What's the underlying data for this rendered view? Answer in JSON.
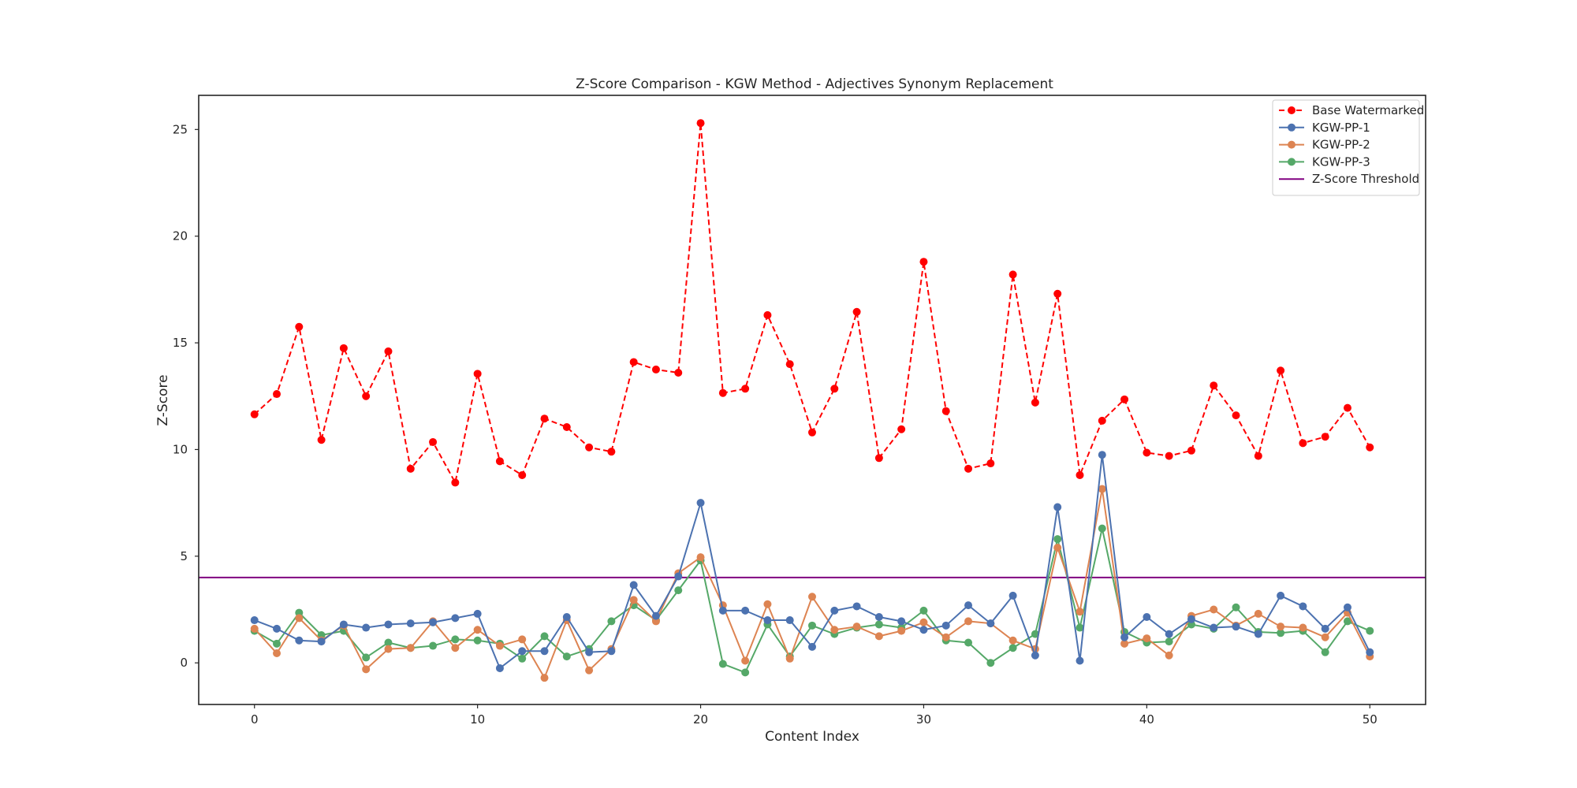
{
  "chart_data": {
    "type": "line",
    "title": "Z-Score Comparison - KGW Method - Adjectives Synonym Replacement",
    "xlabel": "Content Index",
    "ylabel": "Z-Score",
    "xlim": [
      -2.5,
      52.5
    ],
    "ylim": [
      -1.95,
      26.6
    ],
    "xticks": [
      0,
      10,
      20,
      30,
      40,
      50
    ],
    "yticks": [
      0,
      5,
      10,
      15,
      20,
      25
    ],
    "grid": false,
    "legend_position": "top-right",
    "threshold": {
      "name": "Z-Score Threshold",
      "value": 4,
      "color": "#800080"
    },
    "x": [
      0,
      1,
      2,
      3,
      4,
      5,
      6,
      7,
      8,
      9,
      10,
      11,
      12,
      13,
      14,
      15,
      16,
      17,
      18,
      19,
      20,
      21,
      22,
      23,
      24,
      25,
      26,
      27,
      28,
      29,
      30,
      31,
      32,
      33,
      34,
      35,
      36,
      37,
      38,
      39,
      40,
      41,
      42,
      43,
      44,
      45,
      46,
      47,
      48,
      49,
      50
    ],
    "series": [
      {
        "name": "Base Watermarked",
        "color": "#ff0000",
        "style": "dashed",
        "values": [
          11.65,
          12.6,
          15.75,
          10.45,
          14.75,
          12.5,
          14.6,
          9.1,
          10.35,
          8.45,
          13.55,
          9.45,
          8.8,
          11.45,
          11.05,
          10.1,
          9.9,
          14.1,
          13.75,
          13.6,
          25.3,
          12.65,
          12.85,
          16.3,
          14.0,
          10.8,
          12.85,
          16.45,
          9.6,
          10.95,
          18.8,
          11.8,
          9.1,
          9.35,
          18.2,
          12.2,
          17.3,
          8.8,
          11.35,
          12.35,
          9.85,
          9.7,
          9.95,
          13.0,
          11.6,
          9.7,
          13.7,
          10.3,
          10.6,
          11.95,
          10.1
        ]
      },
      {
        "name": "KGW-PP-1",
        "color": "#4c72b0",
        "style": "solid",
        "values": [
          2.0,
          1.6,
          1.05,
          1.0,
          1.8,
          1.65,
          1.8,
          1.85,
          1.9,
          2.1,
          2.3,
          -0.25,
          0.55,
          0.55,
          2.15,
          0.5,
          0.55,
          3.65,
          2.2,
          4.05,
          7.5,
          2.45,
          2.45,
          2.0,
          2.0,
          0.75,
          2.45,
          2.65,
          2.15,
          1.95,
          1.55,
          1.75,
          2.7,
          1.85,
          3.15,
          0.35,
          7.3,
          0.1,
          9.75,
          1.2,
          2.15,
          1.35,
          2.05,
          1.65,
          1.7,
          1.35,
          3.15,
          2.65,
          1.6,
          2.6,
          0.5
        ]
      },
      {
        "name": "KGW-PP-2",
        "color": "#dd8452",
        "style": "solid",
        "values": [
          1.6,
          0.45,
          2.1,
          1.05,
          1.75,
          -0.3,
          0.65,
          0.7,
          1.95,
          0.7,
          1.55,
          0.8,
          1.1,
          -0.7,
          2.0,
          -0.35,
          0.65,
          2.95,
          1.95,
          4.2,
          4.95,
          2.7,
          0.1,
          2.75,
          0.2,
          3.1,
          1.55,
          1.7,
          1.25,
          1.5,
          1.9,
          1.2,
          1.95,
          1.85,
          1.05,
          0.65,
          5.4,
          2.4,
          8.15,
          0.9,
          1.15,
          0.35,
          2.2,
          2.5,
          1.75,
          2.3,
          1.7,
          1.65,
          1.2,
          2.35,
          0.3
        ]
      },
      {
        "name": "KGW-PP-3",
        "color": "#55a868",
        "style": "solid",
        "values": [
          1.5,
          0.9,
          2.35,
          1.3,
          1.5,
          0.25,
          0.95,
          0.7,
          0.8,
          1.1,
          1.05,
          0.9,
          0.2,
          1.25,
          0.3,
          0.65,
          1.95,
          2.7,
          2.0,
          3.4,
          4.8,
          -0.05,
          -0.45,
          1.8,
          0.3,
          1.75,
          1.35,
          1.65,
          1.8,
          1.65,
          2.45,
          1.05,
          0.95,
          0.0,
          0.7,
          1.35,
          5.8,
          1.65,
          6.3,
          1.45,
          0.95,
          1.0,
          1.8,
          1.6,
          2.6,
          1.45,
          1.4,
          1.5,
          0.5,
          1.95,
          1.5
        ]
      }
    ]
  }
}
